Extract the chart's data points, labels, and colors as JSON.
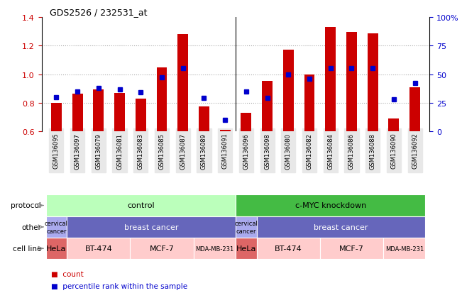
{
  "title": "GDS2526 / 232531_at",
  "samples": [
    "GSM136095",
    "GSM136097",
    "GSM136079",
    "GSM136081",
    "GSM136083",
    "GSM136085",
    "GSM136087",
    "GSM136089",
    "GSM136091",
    "GSM136096",
    "GSM136098",
    "GSM136080",
    "GSM136082",
    "GSM136084",
    "GSM136086",
    "GSM136088",
    "GSM136090",
    "GSM136092"
  ],
  "counts": [
    0.8,
    0.865,
    0.895,
    0.87,
    0.83,
    1.045,
    1.28,
    0.775,
    0.61,
    0.73,
    0.955,
    1.17,
    1.0,
    1.33,
    1.295,
    1.285,
    0.69,
    0.91
  ],
  "percentiles_pct": [
    30,
    35,
    38,
    37,
    34,
    47,
    55,
    29,
    10,
    35,
    29,
    50,
    46,
    55,
    55,
    55,
    28,
    42
  ],
  "ylim_left": [
    0.6,
    1.4
  ],
  "yticks_left": [
    0.6,
    0.8,
    1.0,
    1.2,
    1.4
  ],
  "yticks_right": [
    0,
    25,
    50,
    75,
    100
  ],
  "bar_color": "#cc0000",
  "dot_color": "#0000cc",
  "grid_color": "#aaaaaa",
  "protocol_control_color": "#bbffbb",
  "protocol_knockdown_color": "#44bb44",
  "other_cervical_color": "#aaaaee",
  "other_breast_color": "#6666bb",
  "cell_hela_color": "#dd6666",
  "cell_other_color": "#ffcccc",
  "bg_color": "#ffffff",
  "label_color": "#888888",
  "separator_color": "#000000"
}
